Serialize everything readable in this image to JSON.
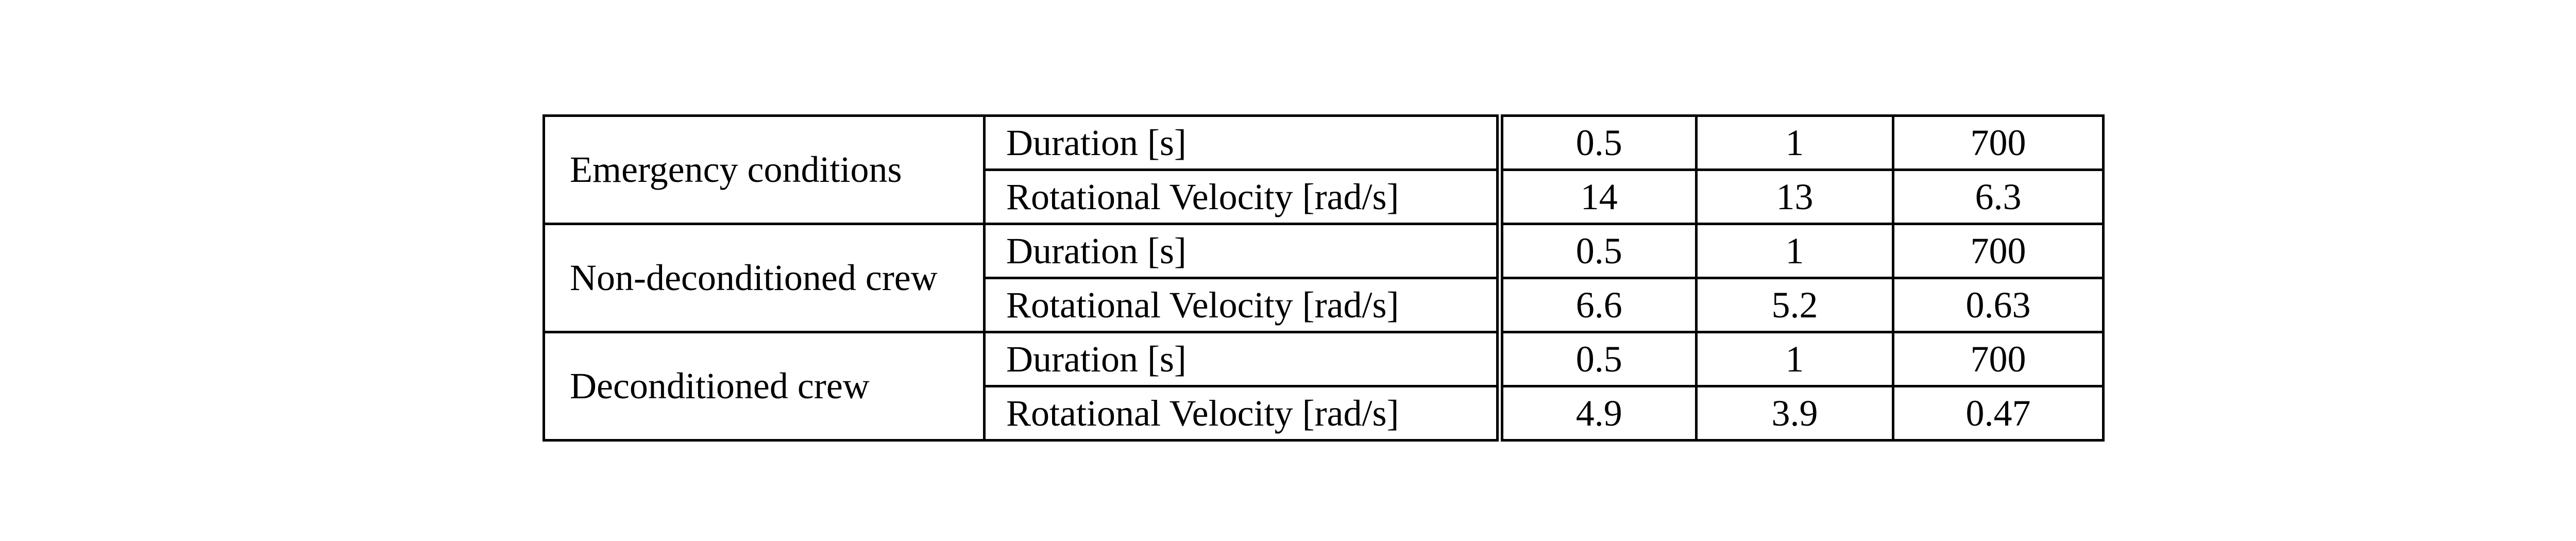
{
  "table": {
    "groups": [
      {
        "name": "Emergency conditions",
        "rows": [
          {
            "parameter": "Duration [s]",
            "values": [
              "0.5",
              "1",
              "700"
            ]
          },
          {
            "parameter": "Rotational Velocity [rad/s]",
            "values": [
              "14",
              "13",
              "6.3"
            ]
          }
        ]
      },
      {
        "name": "Non-deconditioned crew",
        "rows": [
          {
            "parameter": "Duration [s]",
            "values": [
              "0.5",
              "1",
              "700"
            ]
          },
          {
            "parameter": "Rotational Velocity [rad/s]",
            "values": [
              "6.6",
              "5.2",
              "0.63"
            ]
          }
        ]
      },
      {
        "name": "Deconditioned crew",
        "rows": [
          {
            "parameter": "Duration [s]",
            "values": [
              "0.5",
              "1",
              "700"
            ]
          },
          {
            "parameter": "Rotational Velocity [rad/s]",
            "values": [
              "4.9",
              "3.9",
              "0.47"
            ]
          }
        ]
      }
    ]
  }
}
